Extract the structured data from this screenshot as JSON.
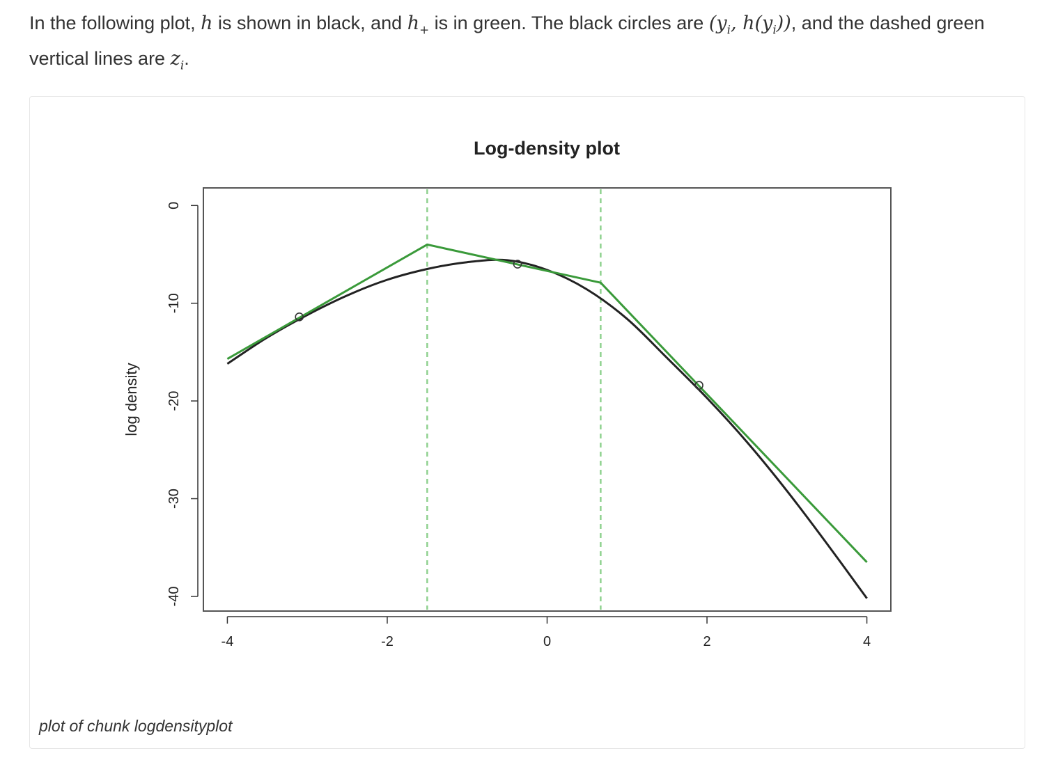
{
  "intro": {
    "p1": "In the following plot, ",
    "h": "h",
    "p2": " is shown in black, and ",
    "hplus": "h",
    "plus_sub": "+",
    "p3": " is in green. The black circles are ",
    "pts": "(y",
    "i1": "i",
    "pts2": ", h(y",
    "i2": "i",
    "pts3": "))",
    "p4": ", and the dashed green vertical lines are ",
    "z": "z",
    "i3": "i",
    "p5": "."
  },
  "caption": "plot of chunk logdensityplot",
  "colors": {
    "h": "#222222",
    "hplus": "#3a9a3a",
    "z": "#8fd18f"
  },
  "chart_data": {
    "type": "line",
    "title": "Log-density plot",
    "xlabel": "",
    "ylabel": "log density",
    "xlim": [
      -4.3,
      4.3
    ],
    "ylim": [
      -41.5,
      1.8
    ],
    "xticks": [
      -4,
      -2,
      0,
      2,
      4
    ],
    "yticks": [
      0,
      -10,
      -20,
      -30,
      -40
    ],
    "series": [
      {
        "key": "h",
        "style": "curve",
        "x": [
          -4,
          -3.5,
          -3,
          -2.5,
          -2,
          -1.5,
          -1,
          -0.5,
          0,
          0.5,
          1,
          1.5,
          2,
          2.5,
          3,
          3.5,
          4
        ],
        "y": [
          -16.2,
          -13.5,
          -11.2,
          -9.2,
          -7.6,
          -6.5,
          -5.8,
          -5.6,
          -6.6,
          -8.6,
          -11.6,
          -15.6,
          -19.7,
          -24.2,
          -29.2,
          -34.6,
          -40.2
        ]
      },
      {
        "key": "hplus",
        "style": "polyline",
        "x": [
          -4,
          -1.5,
          0.67,
          4
        ],
        "y": [
          -15.7,
          -4.0,
          -7.9,
          -36.5
        ]
      },
      {
        "key": "zi",
        "style": "dashed-vertical",
        "x": [
          -1.5,
          0.67
        ]
      },
      {
        "key": "yi",
        "style": "circles",
        "x": [
          -3.1,
          -0.37,
          1.9
        ],
        "y": [
          -11.4,
          -6.0,
          -18.4
        ]
      }
    ]
  }
}
